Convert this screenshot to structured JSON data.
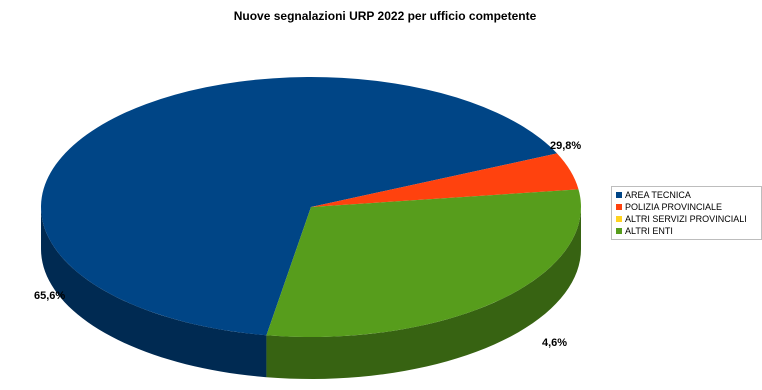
{
  "chart_data": {
    "type": "pie",
    "title": "Nuove segnalazioni URP 2022 per ufficio competente",
    "three_d": true,
    "legend_position": "right",
    "categories": [
      "AREA TECNICA",
      "POLIZIA PROVINCIALE",
      "ALTRI SERVIZI PROVINCIALI",
      "ALTRI ENTI"
    ],
    "values": [
      65.6,
      4.6,
      0.0,
      29.8
    ],
    "value_labels": [
      "65,6%",
      "4,6%",
      "",
      "29,8%"
    ],
    "colors": [
      "#004586",
      "#ff420e",
      "#ffd320",
      "#579d1c"
    ],
    "side_colors": [
      "#002a52",
      "#a82a09",
      "#b09212",
      "#376312"
    ]
  }
}
